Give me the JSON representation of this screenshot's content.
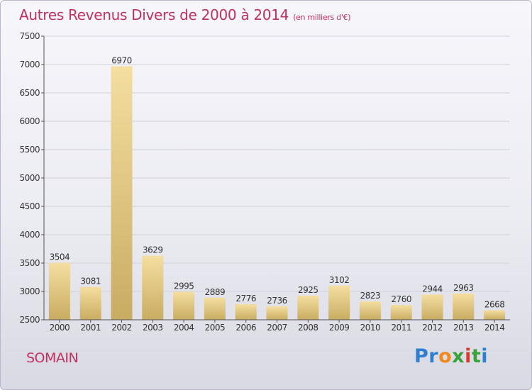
{
  "title": "Autres Revenus Divers de 2000 à 2014",
  "unit_note": "(en milliers d'€)",
  "location": "SOMAIN",
  "brand": "Proxiti",
  "colors": {
    "title": "#c1315e",
    "bar_light": "#f4dea0",
    "bar_dark": "#c9ac62",
    "axis": "#555555",
    "grid": "#d0d0da"
  },
  "chart_data": {
    "type": "bar",
    "title": "Autres Revenus Divers de 2000 à 2014",
    "subtitle": "(en milliers d'€)",
    "xlabel": "",
    "ylabel": "",
    "categories": [
      "2000",
      "2001",
      "2002",
      "2003",
      "2004",
      "2005",
      "2006",
      "2007",
      "2008",
      "2009",
      "2010",
      "2011",
      "2012",
      "2013",
      "2014"
    ],
    "values": [
      3504,
      3081,
      6970,
      3629,
      2995,
      2889,
      2776,
      2736,
      2925,
      3102,
      2823,
      2760,
      2944,
      2963,
      2668
    ],
    "ylim": [
      2500,
      7500
    ],
    "yticks": [
      2500,
      3000,
      3500,
      4000,
      4500,
      5000,
      5500,
      6000,
      6500,
      7000,
      7500
    ],
    "grid": true,
    "legend": "none"
  }
}
